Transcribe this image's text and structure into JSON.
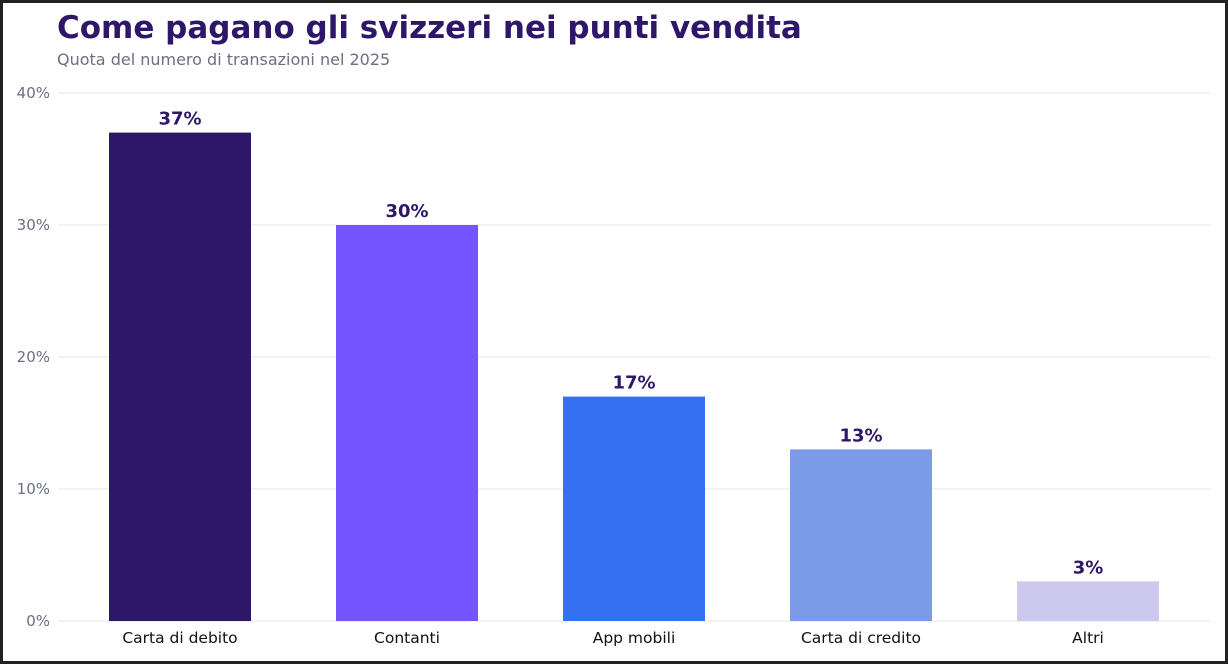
{
  "chart_data": {
    "type": "bar",
    "title": "Come pagano gli svizzeri nei punti vendita",
    "subtitle": "Quota del numero di transazioni nel 2025",
    "xlabel": "",
    "ylabel": "",
    "categories": [
      "Carta di debito",
      "Contanti",
      "App mobili",
      "Carta di credito",
      "Altri"
    ],
    "values": [
      37,
      30,
      17,
      13,
      3
    ],
    "data_labels": [
      "37%",
      "30%",
      "17%",
      "13%",
      "3%"
    ],
    "colors": [
      "#2e1768",
      "#7455ff",
      "#3471f2",
      "#7b9ae8",
      "#cdc9ee"
    ],
    "ylim": [
      0,
      40
    ],
    "yticks": [
      0,
      10,
      20,
      30,
      40
    ],
    "ytick_labels": [
      "0%",
      "10%",
      "20%",
      "30%",
      "40%"
    ],
    "grid": true,
    "legend": "none"
  }
}
